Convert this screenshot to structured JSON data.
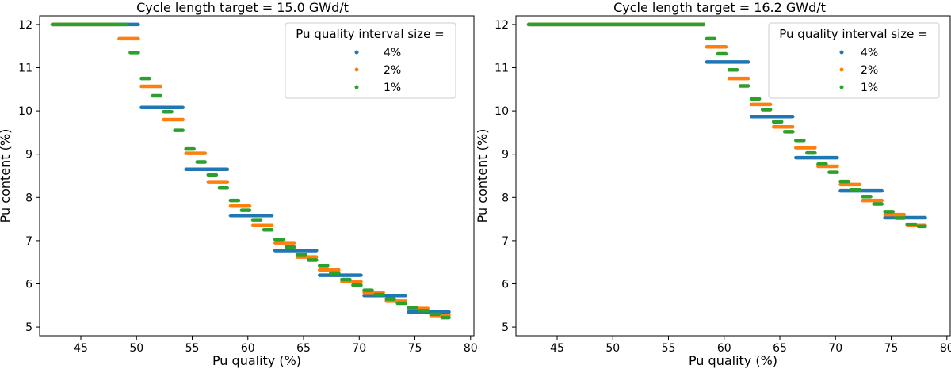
{
  "figure": {
    "background": "#ffffff"
  },
  "chart_data": [
    {
      "type": "scatter",
      "title": "Cycle length target = 15.0 GWd/t",
      "xlabel": "Pu quality (%)",
      "ylabel": "Pu content (%)",
      "xlim": [
        41.3,
        80.3
      ],
      "ylim": [
        4.8,
        12.2
      ],
      "xticks": [
        "45",
        "50",
        "55",
        "60",
        "65",
        "70",
        "75",
        "80"
      ],
      "yticks": [
        "5",
        "6",
        "7",
        "8",
        "9",
        "10",
        "11",
        "12"
      ],
      "grid": false,
      "legend": {
        "title": "Pu quality interval size =",
        "position": "top-right"
      },
      "series": [
        {
          "name": "4%",
          "color": "#1f77b4",
          "segments": [
            [
              [
                42.3,
                50.3
              ],
              12.0
            ],
            [
              [
                50.3,
                54.3
              ],
              10.08
            ],
            [
              [
                54.3,
                58.3
              ],
              8.65
            ],
            [
              [
                58.3,
                62.3
              ],
              7.58
            ],
            [
              [
                62.3,
                66.3
              ],
              6.77
            ],
            [
              [
                66.3,
                70.3
              ],
              6.2
            ],
            [
              [
                70.3,
                74.3
              ],
              5.73
            ],
            [
              [
                74.3,
                78.2
              ],
              5.35
            ]
          ]
        },
        {
          "name": "2%",
          "color": "#ff7f0e",
          "segments": [
            [
              [
                42.3,
                48.3
              ],
              12.0
            ],
            [
              [
                48.3,
                50.3
              ],
              11.67
            ],
            [
              [
                50.3,
                52.3
              ],
              10.57
            ],
            [
              [
                52.3,
                54.3
              ],
              9.8
            ],
            [
              [
                54.3,
                56.3
              ],
              9.02
            ],
            [
              [
                56.3,
                58.3
              ],
              8.36
            ],
            [
              [
                58.3,
                60.3
              ],
              7.8
            ],
            [
              [
                60.3,
                62.3
              ],
              7.35
            ],
            [
              [
                62.3,
                64.3
              ],
              6.95
            ],
            [
              [
                64.3,
                66.3
              ],
              6.62
            ],
            [
              [
                66.3,
                68.3
              ],
              6.32
            ],
            [
              [
                68.3,
                70.3
              ],
              6.05
            ],
            [
              [
                70.3,
                72.3
              ],
              5.8
            ],
            [
              [
                72.3,
                74.3
              ],
              5.6
            ],
            [
              [
                74.3,
                76.3
              ],
              5.43
            ],
            [
              [
                76.3,
                78.2
              ],
              5.27
            ]
          ]
        },
        {
          "name": "1%",
          "color": "#2ca02c",
          "segments": [
            [
              [
                42.3,
                49.3
              ],
              12.0
            ],
            [
              [
                49.3,
                50.3
              ],
              11.35
            ],
            [
              [
                50.3,
                51.3
              ],
              10.75
            ],
            [
              [
                51.3,
                52.3
              ],
              10.35
            ],
            [
              [
                52.3,
                53.3
              ],
              9.98
            ],
            [
              [
                53.3,
                54.3
              ],
              9.55
            ],
            [
              [
                54.3,
                55.3
              ],
              9.12
            ],
            [
              [
                55.3,
                56.3
              ],
              8.82
            ],
            [
              [
                56.3,
                57.3
              ],
              8.52
            ],
            [
              [
                57.3,
                58.3
              ],
              8.22
            ],
            [
              [
                58.3,
                59.3
              ],
              7.93
            ],
            [
              [
                59.3,
                60.3
              ],
              7.7
            ],
            [
              [
                60.3,
                61.3
              ],
              7.48
            ],
            [
              [
                61.3,
                62.3
              ],
              7.25
            ],
            [
              [
                62.3,
                63.3
              ],
              7.03
            ],
            [
              [
                63.3,
                64.3
              ],
              6.85
            ],
            [
              [
                64.3,
                65.3
              ],
              6.68
            ],
            [
              [
                65.3,
                66.3
              ],
              6.55
            ],
            [
              [
                66.3,
                67.3
              ],
              6.42
            ],
            [
              [
                67.3,
                68.3
              ],
              6.25
            ],
            [
              [
                68.3,
                69.3
              ],
              6.1
            ],
            [
              [
                69.3,
                70.3
              ],
              5.97
            ],
            [
              [
                70.3,
                71.3
              ],
              5.85
            ],
            [
              [
                71.3,
                72.3
              ],
              5.75
            ],
            [
              [
                72.3,
                73.3
              ],
              5.65
            ],
            [
              [
                73.3,
                74.3
              ],
              5.55
            ],
            [
              [
                74.3,
                75.3
              ],
              5.45
            ],
            [
              [
                75.3,
                76.3
              ],
              5.38
            ],
            [
              [
                76.3,
                77.3
              ],
              5.3
            ],
            [
              [
                77.3,
                78.2
              ],
              5.22
            ]
          ]
        }
      ]
    },
    {
      "type": "scatter",
      "title": "Cycle length target = 16.2 GWd/t",
      "xlabel": "Pu quality (%)",
      "ylabel": "Pu content (%)",
      "xlim": [
        41.3,
        80.3
      ],
      "ylim": [
        4.8,
        12.2
      ],
      "xticks": [
        "45",
        "50",
        "55",
        "60",
        "65",
        "70",
        "75",
        "80"
      ],
      "yticks": [
        "5",
        "6",
        "7",
        "8",
        "9",
        "10",
        "11",
        "12"
      ],
      "grid": false,
      "legend": {
        "title": "Pu quality interval size =",
        "position": "top-right"
      },
      "series": [
        {
          "name": "4%",
          "color": "#1f77b4",
          "segments": [
            [
              [
                42.3,
                58.3
              ],
              12.0
            ],
            [
              [
                58.3,
                62.3
              ],
              11.13
            ],
            [
              [
                62.3,
                66.3
              ],
              9.87
            ],
            [
              [
                66.3,
                70.3
              ],
              8.92
            ],
            [
              [
                70.3,
                74.3
              ],
              8.15
            ],
            [
              [
                74.3,
                78.2
              ],
              7.53
            ]
          ]
        },
        {
          "name": "2%",
          "color": "#ff7f0e",
          "segments": [
            [
              [
                42.3,
                58.3
              ],
              12.0
            ],
            [
              [
                58.3,
                60.3
              ],
              11.48
            ],
            [
              [
                60.3,
                62.3
              ],
              10.75
            ],
            [
              [
                62.3,
                64.3
              ],
              10.15
            ],
            [
              [
                64.3,
                66.3
              ],
              9.63
            ],
            [
              [
                66.3,
                68.3
              ],
              9.15
            ],
            [
              [
                68.3,
                70.3
              ],
              8.72
            ],
            [
              [
                70.3,
                72.3
              ],
              8.3
            ],
            [
              [
                72.3,
                74.3
              ],
              7.93
            ],
            [
              [
                74.3,
                76.3
              ],
              7.6
            ],
            [
              [
                76.3,
                78.2
              ],
              7.35
            ]
          ]
        },
        {
          "name": "1%",
          "color": "#2ca02c",
          "segments": [
            [
              [
                42.3,
                58.3
              ],
              12.0
            ],
            [
              [
                58.3,
                59.3
              ],
              11.67
            ],
            [
              [
                59.3,
                60.3
              ],
              11.32
            ],
            [
              [
                60.3,
                61.3
              ],
              10.95
            ],
            [
              [
                61.3,
                62.3
              ],
              10.58
            ],
            [
              [
                62.3,
                63.3
              ],
              10.28
            ],
            [
              [
                63.3,
                64.3
              ],
              10.03
            ],
            [
              [
                64.3,
                65.3
              ],
              9.75
            ],
            [
              [
                65.3,
                66.3
              ],
              9.52
            ],
            [
              [
                66.3,
                67.3
              ],
              9.32
            ],
            [
              [
                67.3,
                68.3
              ],
              9.03
            ],
            [
              [
                68.3,
                69.3
              ],
              8.77
            ],
            [
              [
                69.3,
                70.3
              ],
              8.58
            ],
            [
              [
                70.3,
                71.3
              ],
              8.37
            ],
            [
              [
                71.3,
                72.3
              ],
              8.18
            ],
            [
              [
                72.3,
                73.3
              ],
              8.02
            ],
            [
              [
                73.3,
                74.3
              ],
              7.85
            ],
            [
              [
                74.3,
                75.3
              ],
              7.67
            ],
            [
              [
                75.3,
                76.3
              ],
              7.52
            ],
            [
              [
                76.3,
                77.3
              ],
              7.38
            ],
            [
              [
                77.3,
                78.2
              ],
              7.33
            ]
          ]
        }
      ]
    }
  ]
}
